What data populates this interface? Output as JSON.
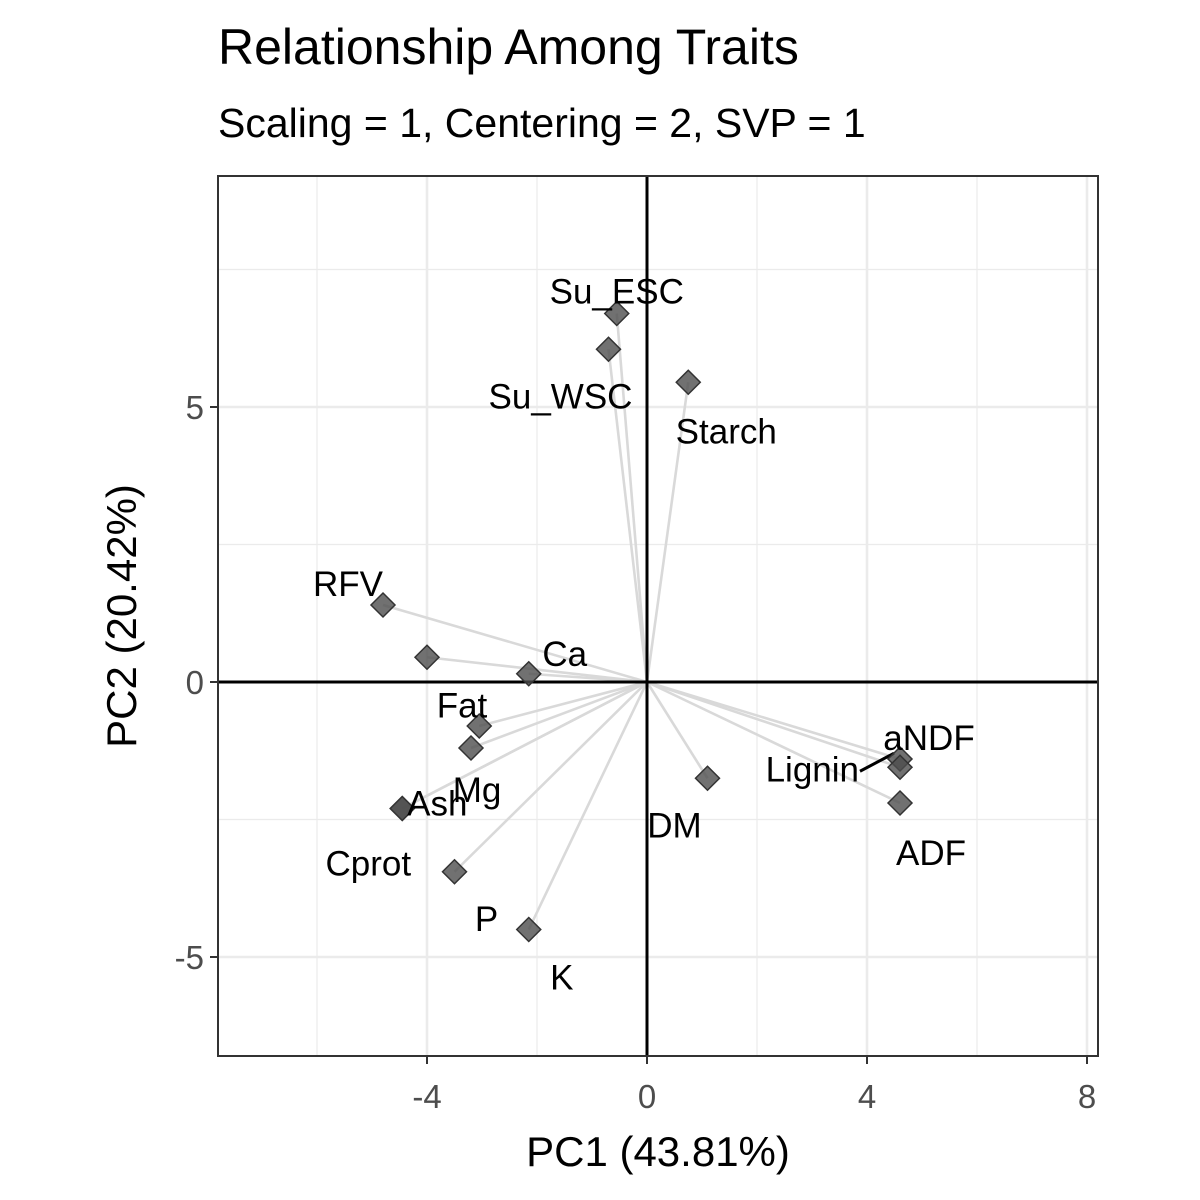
{
  "chart_data": {
    "type": "scatter",
    "title": "Relationship Among Traits",
    "subtitle": "Scaling = 1, Centering = 2, SVP = 1",
    "xlabel": "PC1 (43.81%)",
    "ylabel": "PC2 (20.42%)",
    "xlim": [
      -7.8,
      8.2
    ],
    "ylim": [
      -6.8,
      9.2
    ],
    "x_ticks": [
      -4,
      0,
      4,
      8
    ],
    "x_tick_labels": [
      "-4",
      "0",
      "4",
      "8"
    ],
    "y_ticks": [
      -5,
      0,
      5
    ],
    "y_tick_labels": [
      "-5",
      "0",
      "5"
    ],
    "grid": true,
    "reference_lines": {
      "x": 0,
      "y": 0
    },
    "marker": "diamond",
    "marker_color": "#4d4d4d",
    "vector_color": "#d9d9d9",
    "points": [
      {
        "label": "Su_ESC",
        "x": -0.55,
        "y": 6.7
      },
      {
        "label": "Su_WSC",
        "x": -0.7,
        "y": 6.05
      },
      {
        "label": "Starch",
        "x": 0.75,
        "y": 5.45
      },
      {
        "label": "RFV",
        "x": -4.8,
        "y": 1.4
      },
      {
        "label": "Fat",
        "x": -4.0,
        "y": 0.45
      },
      {
        "label": "Ca",
        "x": -2.15,
        "y": 0.15
      },
      {
        "label": "",
        "x": -3.05,
        "y": -0.8
      },
      {
        "label": "Mg",
        "x": -3.2,
        "y": -1.2
      },
      {
        "label": "Ash",
        "x": -4.45,
        "y": -2.3
      },
      {
        "label": "Cprot",
        "x": -4.45,
        "y": -2.3
      },
      {
        "label": "P",
        "x": -3.5,
        "y": -3.45
      },
      {
        "label": "K",
        "x": -2.15,
        "y": -4.5
      },
      {
        "label": "DM",
        "x": 1.1,
        "y": -1.75
      },
      {
        "label": "aNDF",
        "x": 4.6,
        "y": -1.4
      },
      {
        "label": "Lignin",
        "x": 4.6,
        "y": -1.55
      },
      {
        "label": "ADF",
        "x": 4.6,
        "y": -2.2
      }
    ]
  }
}
